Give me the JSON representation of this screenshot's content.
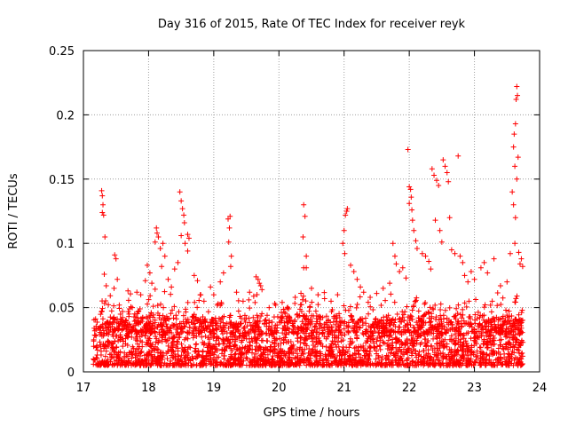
{
  "chart_data": {
    "type": "scatter",
    "title": "Day 316 of 2015, Rate Of TEC Index for receiver reyk",
    "xlabel": "GPS time / hours",
    "ylabel": "ROTI / TECUs",
    "xlim": [
      17,
      24
    ],
    "ylim": [
      0,
      0.25
    ],
    "grid": true,
    "marker": "plus",
    "colors": {
      "marker": "#ff0000",
      "grid": "#a0a0a0",
      "axis": "#000000"
    },
    "x_ticks": [
      17,
      18,
      19,
      20,
      21,
      22,
      23,
      24
    ],
    "x_tick_labels": [
      "17",
      "18",
      "19",
      "20",
      "21",
      "22",
      "23",
      "24"
    ],
    "y_ticks": [
      0,
      0.05,
      0.1,
      0.15,
      0.2,
      0.25
    ],
    "y_tick_labels": [
      "0",
      "0.05",
      "0.1",
      "0.15",
      "0.2",
      "0.25"
    ],
    "series": [
      {
        "name": "ROTI",
        "points": [
          [
            17.28,
            0.141
          ],
          [
            17.29,
            0.137
          ],
          [
            17.3,
            0.13
          ],
          [
            17.29,
            0.124
          ],
          [
            17.31,
            0.122
          ],
          [
            17.33,
            0.105
          ],
          [
            17.32,
            0.076
          ],
          [
            17.35,
            0.067
          ],
          [
            17.48,
            0.091
          ],
          [
            17.5,
            0.088
          ],
          [
            17.52,
            0.072
          ],
          [
            17.47,
            0.065
          ],
          [
            17.55,
            0.052
          ],
          [
            17.6,
            0.047
          ],
          [
            17.7,
            0.045
          ],
          [
            17.75,
            0.05
          ],
          [
            17.82,
            0.062
          ],
          [
            17.88,
            0.06
          ],
          [
            17.95,
            0.071
          ],
          [
            17.98,
            0.083
          ],
          [
            18.02,
            0.077
          ],
          [
            18.05,
            0.069
          ],
          [
            18.1,
            0.101
          ],
          [
            18.12,
            0.112
          ],
          [
            18.13,
            0.108
          ],
          [
            18.15,
            0.105
          ],
          [
            18.18,
            0.096
          ],
          [
            18.22,
            0.1
          ],
          [
            18.25,
            0.09
          ],
          [
            18.2,
            0.082
          ],
          [
            18.3,
            0.072
          ],
          [
            18.35,
            0.066
          ],
          [
            18.4,
            0.08
          ],
          [
            18.45,
            0.085
          ],
          [
            18.48,
            0.14
          ],
          [
            18.5,
            0.133
          ],
          [
            18.52,
            0.127
          ],
          [
            18.54,
            0.122
          ],
          [
            18.55,
            0.116
          ],
          [
            18.5,
            0.106
          ],
          [
            18.56,
            0.1
          ],
          [
            18.6,
            0.107
          ],
          [
            18.62,
            0.104
          ],
          [
            18.6,
            0.094
          ],
          [
            18.7,
            0.075
          ],
          [
            18.75,
            0.071
          ],
          [
            18.8,
            0.06
          ],
          [
            18.85,
            0.055
          ],
          [
            18.95,
            0.066
          ],
          [
            19.0,
            0.06
          ],
          [
            19.1,
            0.07
          ],
          [
            19.15,
            0.077
          ],
          [
            19.22,
            0.119
          ],
          [
            19.25,
            0.121
          ],
          [
            19.24,
            0.112
          ],
          [
            19.23,
            0.101
          ],
          [
            19.27,
            0.09
          ],
          [
            19.26,
            0.082
          ],
          [
            19.35,
            0.062
          ],
          [
            19.45,
            0.055
          ],
          [
            19.55,
            0.062
          ],
          [
            19.65,
            0.074
          ],
          [
            19.68,
            0.072
          ],
          [
            19.7,
            0.069
          ],
          [
            19.72,
            0.067
          ],
          [
            19.74,
            0.064
          ],
          [
            19.85,
            0.05
          ],
          [
            19.95,
            0.052
          ],
          [
            20.05,
            0.054
          ],
          [
            20.15,
            0.049
          ],
          [
            20.25,
            0.058
          ],
          [
            20.38,
            0.13
          ],
          [
            20.4,
            0.121
          ],
          [
            20.37,
            0.105
          ],
          [
            20.42,
            0.09
          ],
          [
            20.38,
            0.081
          ],
          [
            20.42,
            0.081
          ],
          [
            20.5,
            0.065
          ],
          [
            20.6,
            0.06
          ],
          [
            20.7,
            0.057
          ],
          [
            20.8,
            0.055
          ],
          [
            20.9,
            0.06
          ],
          [
            20.98,
            0.1
          ],
          [
            21.0,
            0.11
          ],
          [
            21.02,
            0.122
          ],
          [
            21.04,
            0.125
          ],
          [
            21.05,
            0.127
          ],
          [
            21.01,
            0.092
          ],
          [
            21.1,
            0.083
          ],
          [
            21.15,
            0.078
          ],
          [
            21.2,
            0.072
          ],
          [
            21.25,
            0.066
          ],
          [
            21.3,
            0.062
          ],
          [
            21.4,
            0.058
          ],
          [
            21.5,
            0.061
          ],
          [
            21.6,
            0.065
          ],
          [
            21.7,
            0.069
          ],
          [
            21.75,
            0.1
          ],
          [
            21.78,
            0.09
          ],
          [
            21.8,
            0.084
          ],
          [
            21.85,
            0.078
          ],
          [
            21.9,
            0.081
          ],
          [
            21.95,
            0.073
          ],
          [
            21.98,
            0.173
          ],
          [
            22.0,
            0.144
          ],
          [
            22.02,
            0.142
          ],
          [
            22.03,
            0.136
          ],
          [
            22.0,
            0.131
          ],
          [
            22.04,
            0.126
          ],
          [
            22.05,
            0.118
          ],
          [
            22.07,
            0.11
          ],
          [
            22.1,
            0.102
          ],
          [
            22.12,
            0.096
          ],
          [
            22.2,
            0.092
          ],
          [
            22.25,
            0.09
          ],
          [
            22.3,
            0.086
          ],
          [
            22.33,
            0.08
          ],
          [
            22.35,
            0.158
          ],
          [
            22.38,
            0.153
          ],
          [
            22.42,
            0.149
          ],
          [
            22.45,
            0.145
          ],
          [
            22.4,
            0.118
          ],
          [
            22.47,
            0.11
          ],
          [
            22.5,
            0.101
          ],
          [
            22.52,
            0.165
          ],
          [
            22.55,
            0.16
          ],
          [
            22.58,
            0.155
          ],
          [
            22.6,
            0.148
          ],
          [
            22.62,
            0.12
          ],
          [
            22.65,
            0.095
          ],
          [
            22.7,
            0.092
          ],
          [
            22.75,
            0.168
          ],
          [
            22.78,
            0.09
          ],
          [
            22.82,
            0.085
          ],
          [
            22.85,
            0.075
          ],
          [
            22.9,
            0.07
          ],
          [
            22.95,
            0.078
          ],
          [
            23.0,
            0.072
          ],
          [
            23.1,
            0.081
          ],
          [
            23.15,
            0.085
          ],
          [
            23.2,
            0.077
          ],
          [
            23.3,
            0.088
          ],
          [
            23.4,
            0.067
          ],
          [
            23.5,
            0.07
          ],
          [
            23.55,
            0.092
          ],
          [
            23.58,
            0.14
          ],
          [
            23.6,
            0.175
          ],
          [
            23.61,
            0.185
          ],
          [
            23.62,
            0.16
          ],
          [
            23.63,
            0.193
          ],
          [
            23.64,
            0.212
          ],
          [
            23.65,
            0.222
          ],
          [
            23.66,
            0.215
          ],
          [
            23.67,
            0.167
          ],
          [
            23.65,
            0.15
          ],
          [
            23.63,
            0.12
          ],
          [
            23.6,
            0.13
          ],
          [
            23.62,
            0.1
          ],
          [
            23.68,
            0.093
          ],
          [
            23.7,
            0.084
          ],
          [
            23.72,
            0.088
          ],
          [
            23.74,
            0.082
          ]
        ]
      }
    ],
    "baseline_band": {
      "x_range": [
        17.15,
        23.75
      ],
      "y_range": [
        0.005,
        0.035
      ],
      "density_note": "dense cluster of points"
    }
  }
}
